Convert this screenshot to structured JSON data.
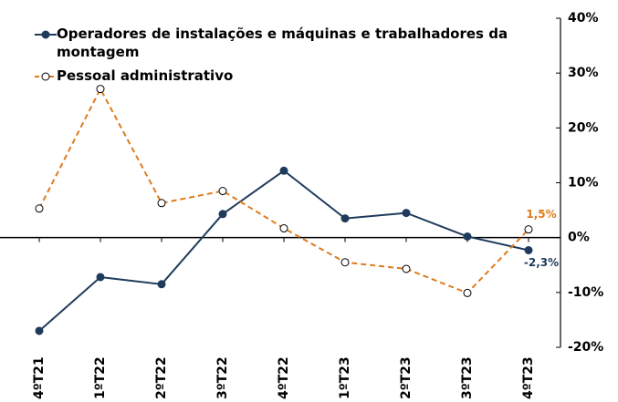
{
  "chart_data": {
    "type": "line",
    "categories": [
      "4ºT21",
      "1ºT22",
      "2ºT22",
      "3ºT22",
      "4ºT22",
      "1ºT23",
      "2ºT23",
      "3ºT23",
      "4ºT23"
    ],
    "series": [
      {
        "name": "Operadores de instalações e máquinas e trabalhadores da montagem",
        "color": "#1f3b5c",
        "dashed": false,
        "values": [
          -17,
          -7.2,
          -8.5,
          4.3,
          12.2,
          3.5,
          4.5,
          0.2,
          -2.3
        ],
        "value_labels": [
          null,
          null,
          null,
          null,
          null,
          null,
          null,
          null,
          "-2,3%"
        ]
      },
      {
        "name": "Pessoal administrativo",
        "color": "#e07b1a",
        "dashed": true,
        "values": [
          5.3,
          27.1,
          6.3,
          8.5,
          1.7,
          -4.5,
          -5.7,
          -10.1,
          1.5
        ],
        "value_labels": [
          null,
          null,
          null,
          null,
          null,
          null,
          null,
          null,
          "1,5%"
        ]
      }
    ],
    "ylim": [
      -20,
      40
    ],
    "yticks": [
      {
        "value": 40,
        "label": "40%"
      },
      {
        "value": 30,
        "label": "30%"
      },
      {
        "value": 20,
        "label": "20%"
      },
      {
        "value": 10,
        "label": "10%"
      },
      {
        "value": 0,
        "label": "0%"
      },
      {
        "value": -10,
        "label": "-10%"
      },
      {
        "value": -20,
        "label": "-20%"
      }
    ],
    "y_axis_side": "right",
    "legend": "top-left"
  }
}
